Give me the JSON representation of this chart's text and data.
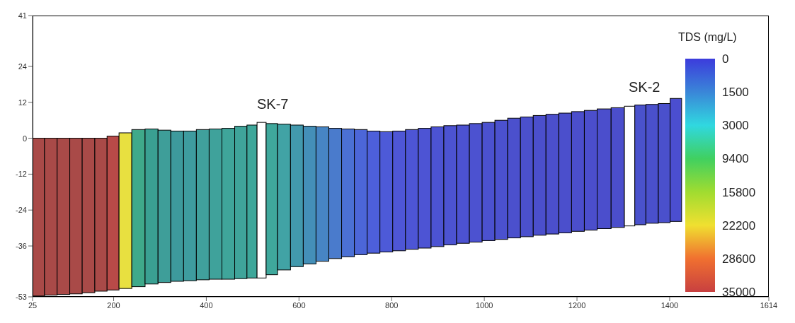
{
  "chart_data": {
    "type": "bar",
    "clabel": "TDS (mg/L)",
    "x": [
      37.5,
      64.2,
      91.9,
      118.7,
      145.6,
      173.1,
      198.5,
      224.7,
      253.7,
      282,
      309.6,
      337.2,
      364.7,
      392.3,
      419.9,
      447.5,
      475,
      500.4,
      518.6,
      539.6,
      567.9,
      595.5,
      623,
      650.6,
      678.2,
      705.8,
      733.4,
      760.9,
      788.5,
      816.1,
      843.7,
      871.3,
      898.9,
      926.4,
      954,
      981.6,
      1009.1,
      1036.6,
      1064.2,
      1091.9,
      1119.3,
      1146.9,
      1174.5,
      1202.1,
      1229.7,
      1257.3,
      1290,
      1314.7,
      1334.9,
      1362.5,
      1388.6,
      1413.4
    ],
    "base": [
      -52.7,
      -52.4,
      -52.2,
      -52,
      -51.6,
      -51.1,
      -50.7,
      -50.2,
      -49.6,
      -48.7,
      -48.2,
      -47.8,
      -47.6,
      -47.3,
      -47.1,
      -47.1,
      -46.9,
      -46.7,
      -46.7,
      -45.6,
      -44,
      -42.9,
      -42,
      -41.1,
      -40.2,
      -39.6,
      -38.9,
      -38.4,
      -38,
      -37.6,
      -37.1,
      -36.7,
      -36.2,
      -35.6,
      -35.1,
      -34.7,
      -34.2,
      -33.8,
      -33.3,
      -32.9,
      -32.4,
      -32,
      -31.6,
      -31.1,
      -30.7,
      -30.2,
      -29.8,
      -29.3,
      -28.9,
      -28.4,
      -28.2,
      -27.8
    ],
    "values": [
      52.7,
      52.4,
      52.2,
      52,
      51.6,
      51.1,
      51.4,
      52,
      52.5,
      51.8,
      50.9,
      50.2,
      50,
      50.2,
      50.2,
      50.4,
      50.9,
      51.1,
      52,
      50.5,
      48.7,
      47.3,
      46,
      44.9,
      43.5,
      42.7,
      41.8,
      40.8,
      40.2,
      40,
      40,
      40,
      40,
      39.8,
      39.5,
      39.6,
      39.5,
      39.8,
      40,
      40,
      40,
      40,
      40,
      40,
      40,
      40,
      40,
      40,
      40,
      39.7,
      39.8,
      41.1
    ],
    "colors": [
      "#a94a48",
      "#a94a48",
      "#a94a48",
      "#a94a48",
      "#a94a48",
      "#a94a48",
      "#b84a48",
      "#e8e040",
      "#3fa98a",
      "#3aa092",
      "#3e9e99",
      "#3d9a9c",
      "#3e9c9f",
      "#40a09c",
      "#3fa29b",
      "#3fa59a",
      "#3fa49a",
      "#3ea79a",
      "#ffffff",
      "#3fa89c",
      "#41a3a5",
      "#4299ad",
      "#448fb8",
      "#4785c4",
      "#4a7bcc",
      "#4b70d4",
      "#4c66d8",
      "#4d5fda",
      "#4d5ad8",
      "#4e56d6",
      "#4d55d5",
      "#4d54d4",
      "#4c53d3",
      "#4c53d2",
      "#4c52d1",
      "#4c52d0",
      "#4b51cf",
      "#4b51ce",
      "#4b50cd",
      "#4b50cd",
      "#4b4fcc",
      "#4b4fcc",
      "#4b4fcc",
      "#4b4ecc",
      "#4b4ecc",
      "#4b4ecc",
      "#4b4ecc",
      "#ffffff",
      "#4a52cc",
      "#4a50cc",
      "#4a50cc",
      "#4b4ed0"
    ],
    "xlim": [
      25,
      1614
    ],
    "xticks": [
      25,
      200,
      400,
      600,
      800,
      1000,
      1200,
      1400,
      1614
    ],
    "ylim": [
      -53,
      41
    ],
    "yticks": [
      41,
      24,
      12,
      0,
      -12,
      -24,
      -36,
      -53
    ],
    "annotations": [
      "SK-7",
      "SK-2",
      "0",
      "1500",
      "3000",
      "9400",
      "15800",
      "22200",
      "28600",
      "35000"
    ]
  }
}
